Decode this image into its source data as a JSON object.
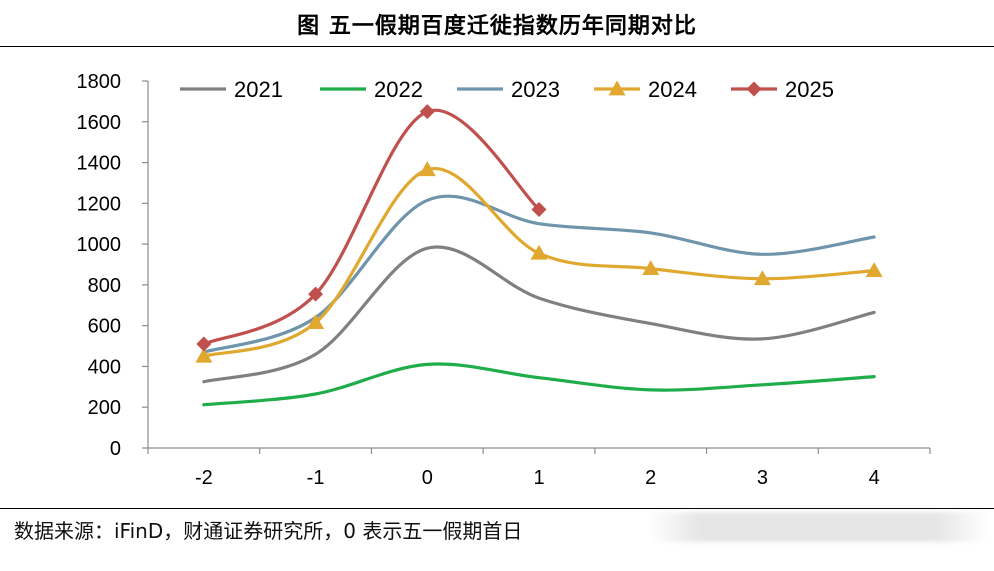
{
  "title": "图  五一假期百度迁徙指数历年同期对比",
  "source": "数据来源：iFinD，财通证券研究所，0 表示五一假期首日",
  "chart_data": {
    "type": "line",
    "title": "图  五一假期百度迁徙指数历年同期对比",
    "xlabel": "",
    "ylabel": "",
    "categories": [
      "-2",
      "-1",
      "0",
      "1",
      "2",
      "3",
      "4"
    ],
    "ylim": [
      0,
      1800
    ],
    "yticks": [
      0,
      200,
      400,
      600,
      800,
      1000,
      1200,
      1400,
      1600,
      1800
    ],
    "grid": false,
    "legend_position": "top",
    "series": [
      {
        "name": "2021",
        "color": "#808080",
        "marker": "none",
        "values": [
          325,
          460,
          980,
          735,
          610,
          535,
          665
        ]
      },
      {
        "name": "2022",
        "color": "#1fad4a",
        "marker": "none",
        "values": [
          212,
          265,
          410,
          345,
          285,
          310,
          350
        ]
      },
      {
        "name": "2023",
        "color": "#6f95ac",
        "marker": "none",
        "values": [
          470,
          640,
          1215,
          1100,
          1055,
          950,
          1035
        ]
      },
      {
        "name": "2024",
        "color": "#e0a82e",
        "marker": "triangle",
        "values": [
          450,
          615,
          1365,
          955,
          880,
          830,
          870
        ]
      },
      {
        "name": "2025",
        "color": "#c0504d",
        "marker": "diamond",
        "values": [
          510,
          755,
          1650,
          1170,
          null,
          null,
          null
        ]
      }
    ]
  }
}
